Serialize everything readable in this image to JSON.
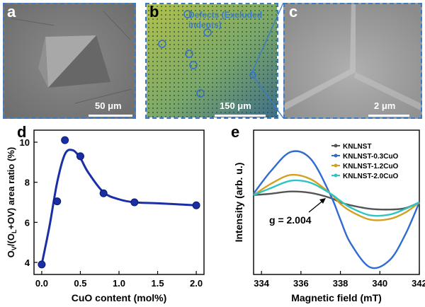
{
  "panels": {
    "a": {
      "label": "a",
      "scale": "50 μm"
    },
    "b": {
      "label": "b",
      "scale": "150 μm",
      "annotation": "Defects (Excluded indents)"
    },
    "c": {
      "label": "c",
      "scale": "2 μm"
    },
    "d": {
      "label": "d"
    },
    "e": {
      "label": "e"
    }
  },
  "colors": {
    "frame": "#3a7bc8",
    "d_series": "#1a2fa6"
  },
  "chart_data": [
    {
      "type": "scatter",
      "panel": "d",
      "xlabel": "CuO content (mol%)",
      "ylabel_parts": [
        "O",
        "V",
        "/(O",
        "L",
        "+O",
        "V",
        ") area ratio (%)"
      ],
      "xlim": [
        -0.1,
        2.1
      ],
      "ylim": [
        3.4,
        10.6
      ],
      "xticks": [
        0.0,
        0.5,
        1.0,
        1.5,
        2.0
      ],
      "xtick_labels": [
        "0.0",
        "0.5",
        "1.0",
        "1.5",
        "2.0"
      ],
      "yticks": [
        4,
        6,
        8,
        10
      ],
      "ytick_labels": [
        "4",
        "6",
        "8",
        "10"
      ],
      "x": [
        0.0,
        0.2,
        0.3,
        0.5,
        0.8,
        1.2,
        2.0
      ],
      "y": [
        3.9,
        7.05,
        10.1,
        9.3,
        7.45,
        7.0,
        6.85
      ],
      "fit": {
        "x": [
          0.0,
          0.1,
          0.2,
          0.3,
          0.4,
          0.5,
          0.6,
          0.8,
          1.0,
          1.2,
          1.5,
          2.0
        ],
        "y": [
          3.9,
          5.8,
          8.0,
          9.4,
          9.6,
          9.2,
          8.5,
          7.5,
          7.15,
          7.0,
          6.95,
          6.85
        ]
      }
    },
    {
      "type": "line",
      "panel": "e",
      "xlabel": "Magnetic field (mT)",
      "ylabel": "Intensity (arb. u.)",
      "xlim": [
        333.6,
        342
      ],
      "ylim": [
        0,
        1
      ],
      "xticks": [
        334,
        336,
        338,
        340,
        342
      ],
      "xtick_labels": [
        "334",
        "336",
        "338",
        "340",
        "342"
      ],
      "annotation": "g = 2.004",
      "x": [
        333.6,
        334.5,
        335.5,
        336.5,
        337.5,
        338.0,
        338.5,
        339.5,
        340.5,
        341.3,
        342.0
      ],
      "series": [
        {
          "name": "KNLNST",
          "color": "#555555",
          "values": [
            0.55,
            0.56,
            0.575,
            0.565,
            0.53,
            0.5,
            0.48,
            0.455,
            0.45,
            0.46,
            0.5
          ]
        },
        {
          "name": "KNLNST-0.3CuO",
          "color": "#2f6bd0",
          "values": [
            0.56,
            0.72,
            0.85,
            0.8,
            0.55,
            0.38,
            0.22,
            0.05,
            0.1,
            0.28,
            0.5
          ]
        },
        {
          "name": "KNLNST-1.2CuO",
          "color": "#d4a020",
          "values": [
            0.55,
            0.63,
            0.69,
            0.66,
            0.56,
            0.49,
            0.44,
            0.38,
            0.385,
            0.43,
            0.5
          ]
        },
        {
          "name": "KNLNST-2.0CuO",
          "color": "#2ec4c4",
          "values": [
            0.55,
            0.6,
            0.65,
            0.635,
            0.56,
            0.51,
            0.465,
            0.41,
            0.415,
            0.455,
            0.5
          ]
        }
      ]
    }
  ]
}
